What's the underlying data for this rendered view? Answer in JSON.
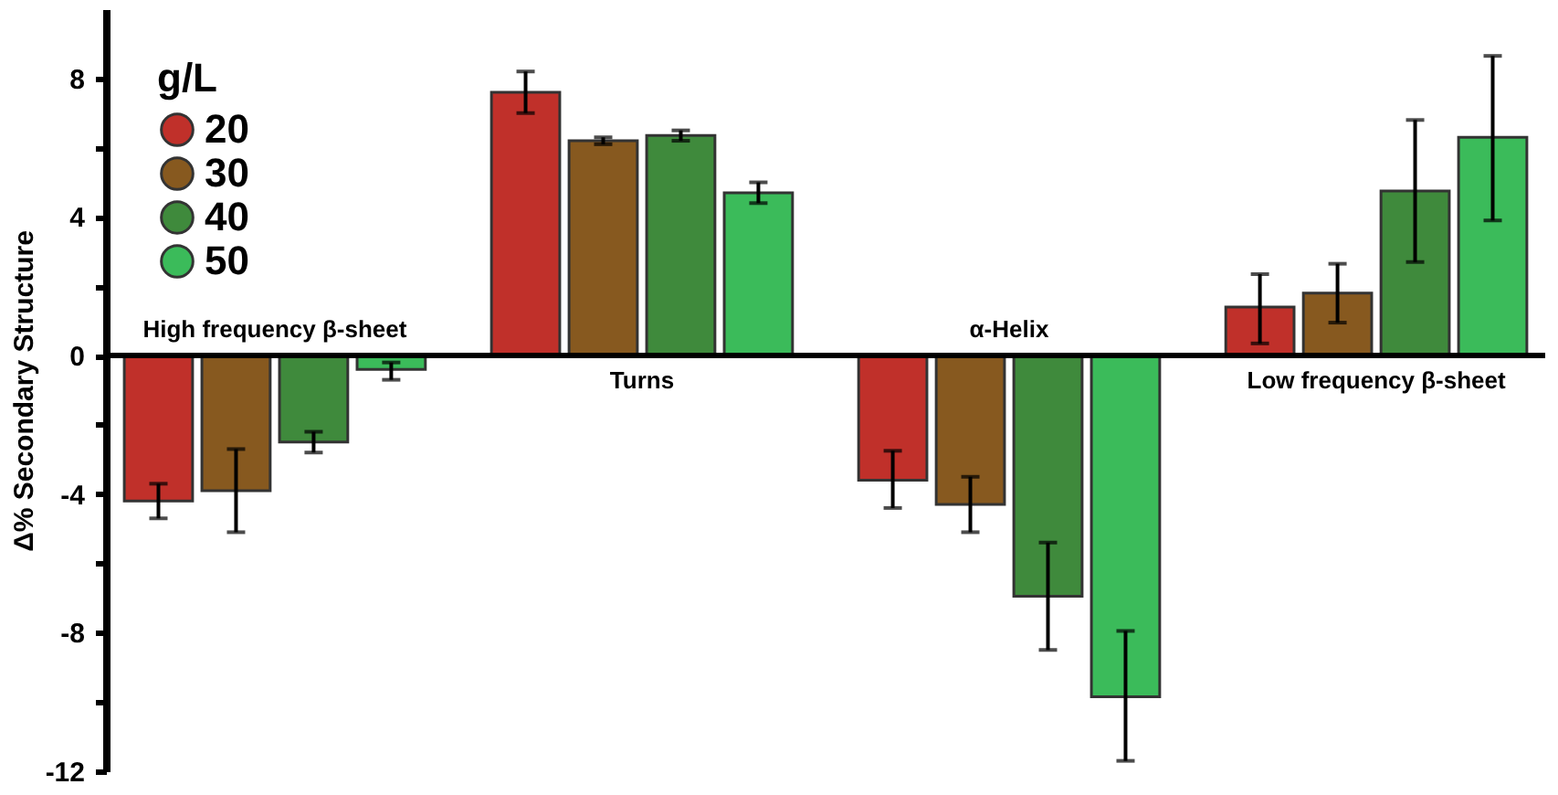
{
  "chart_data": {
    "type": "bar",
    "ylabel": "Δ% Secondary Structure",
    "legend_title": "g/L",
    "legend": "top left",
    "categories": [
      "High frequency β-sheet",
      "Turns",
      "α-Helix",
      "Low frequency β-sheet"
    ],
    "series": [
      {
        "name": "20",
        "color": "#c0302a",
        "values": [
          -4.2,
          7.6,
          -3.6,
          1.4
        ],
        "errors": [
          [
            -4.7,
            -3.7
          ],
          [
            7.0,
            8.2
          ],
          [
            -4.4,
            -2.75
          ],
          [
            0.35,
            2.35
          ]
        ]
      },
      {
        "name": "30",
        "color": "#87591f",
        "values": [
          -3.9,
          6.2,
          -4.3,
          1.8
        ],
        "errors": [
          [
            -5.1,
            -2.7
          ],
          [
            6.1,
            6.3
          ],
          [
            -5.1,
            -3.5
          ],
          [
            0.95,
            2.65
          ]
        ]
      },
      {
        "name": "40",
        "color": "#3f8a3c",
        "values": [
          -2.5,
          6.35,
          -6.95,
          4.75
        ],
        "errors": [
          [
            -2.8,
            -2.2
          ],
          [
            6.2,
            6.5
          ],
          [
            -8.5,
            -5.4
          ],
          [
            2.7,
            6.8
          ]
        ]
      },
      {
        "name": "50",
        "color": "#3bbb5a",
        "values": [
          -0.4,
          4.7,
          -9.85,
          6.3
        ],
        "errors": [
          [
            -0.7,
            -0.2
          ],
          [
            4.4,
            5.0
          ],
          [
            -11.7,
            -7.95
          ],
          [
            3.9,
            8.65
          ]
        ]
      }
    ],
    "ylim": [
      -12,
      10
    ],
    "yticks": [
      -12,
      {
        "value": -10,
        "label": null
      },
      -8,
      {
        "value": -6,
        "label": null
      },
      -4,
      {
        "value": -2,
        "label": null
      },
      0,
      {
        "value": 2,
        "label": null
      },
      4,
      {
        "value": 6,
        "label": null
      },
      8
    ],
    "grid": false,
    "marker": "circle"
  }
}
